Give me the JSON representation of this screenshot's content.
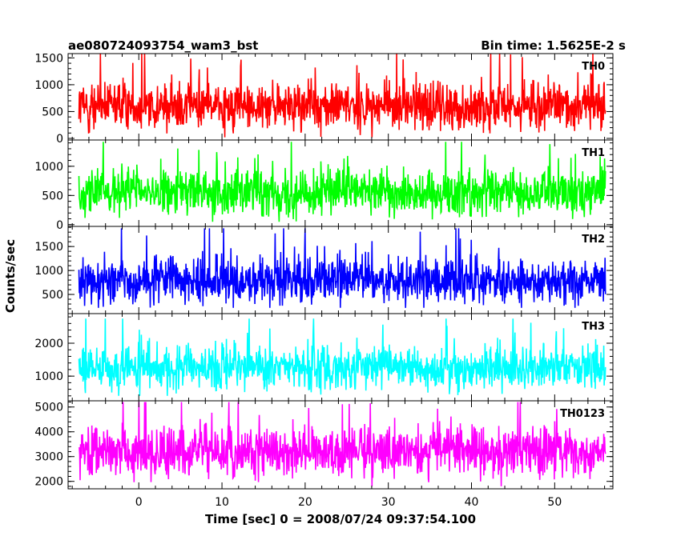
{
  "chart_data": {
    "type": "line",
    "title": "ae080724093754_wam3_bst",
    "subtitle": "Bin time: 1.5625E-2 s",
    "xlabel": "Time [sec] 0 = 2008/07/24 09:37:54.100",
    "ylabel": "Counts/sec",
    "xlim": [
      -8.5,
      57
    ],
    "xticks": [
      0,
      10,
      20,
      30,
      40,
      50
    ],
    "grid": false,
    "panels": [
      {
        "name": "TH0",
        "color": "#ff0000",
        "ylim": [
          -30,
          1580
        ],
        "yticks": [
          0,
          500,
          1000,
          1500
        ],
        "approx_mean": 600,
        "approx_min": 20,
        "approx_max": 1580
      },
      {
        "name": "TH1",
        "color": "#00ff00",
        "ylim": [
          -30,
          1450
        ],
        "yticks": [
          0,
          500,
          1000
        ],
        "approx_mean": 560,
        "approx_min": 50,
        "approx_max": 1420
      },
      {
        "name": "TH2",
        "color": "#0000ff",
        "ylim": [
          100,
          1920
        ],
        "yticks": [
          500,
          1000,
          1500
        ],
        "approx_mean": 800,
        "approx_min": 220,
        "approx_max": 1880
      },
      {
        "name": "TH3",
        "color": "#00ffff",
        "ylim": [
          250,
          2900
        ],
        "yticks": [
          1000,
          2000
        ],
        "approx_mean": 1250,
        "approx_min": 400,
        "approx_max": 2750
      },
      {
        "name": "TH0123",
        "color": "#ff00ff",
        "ylim": [
          1700,
          5250
        ],
        "yticks": [
          2000,
          3000,
          4000,
          5000
        ],
        "approx_mean": 3200,
        "approx_min": 1800,
        "approx_max": 5200
      }
    ]
  }
}
